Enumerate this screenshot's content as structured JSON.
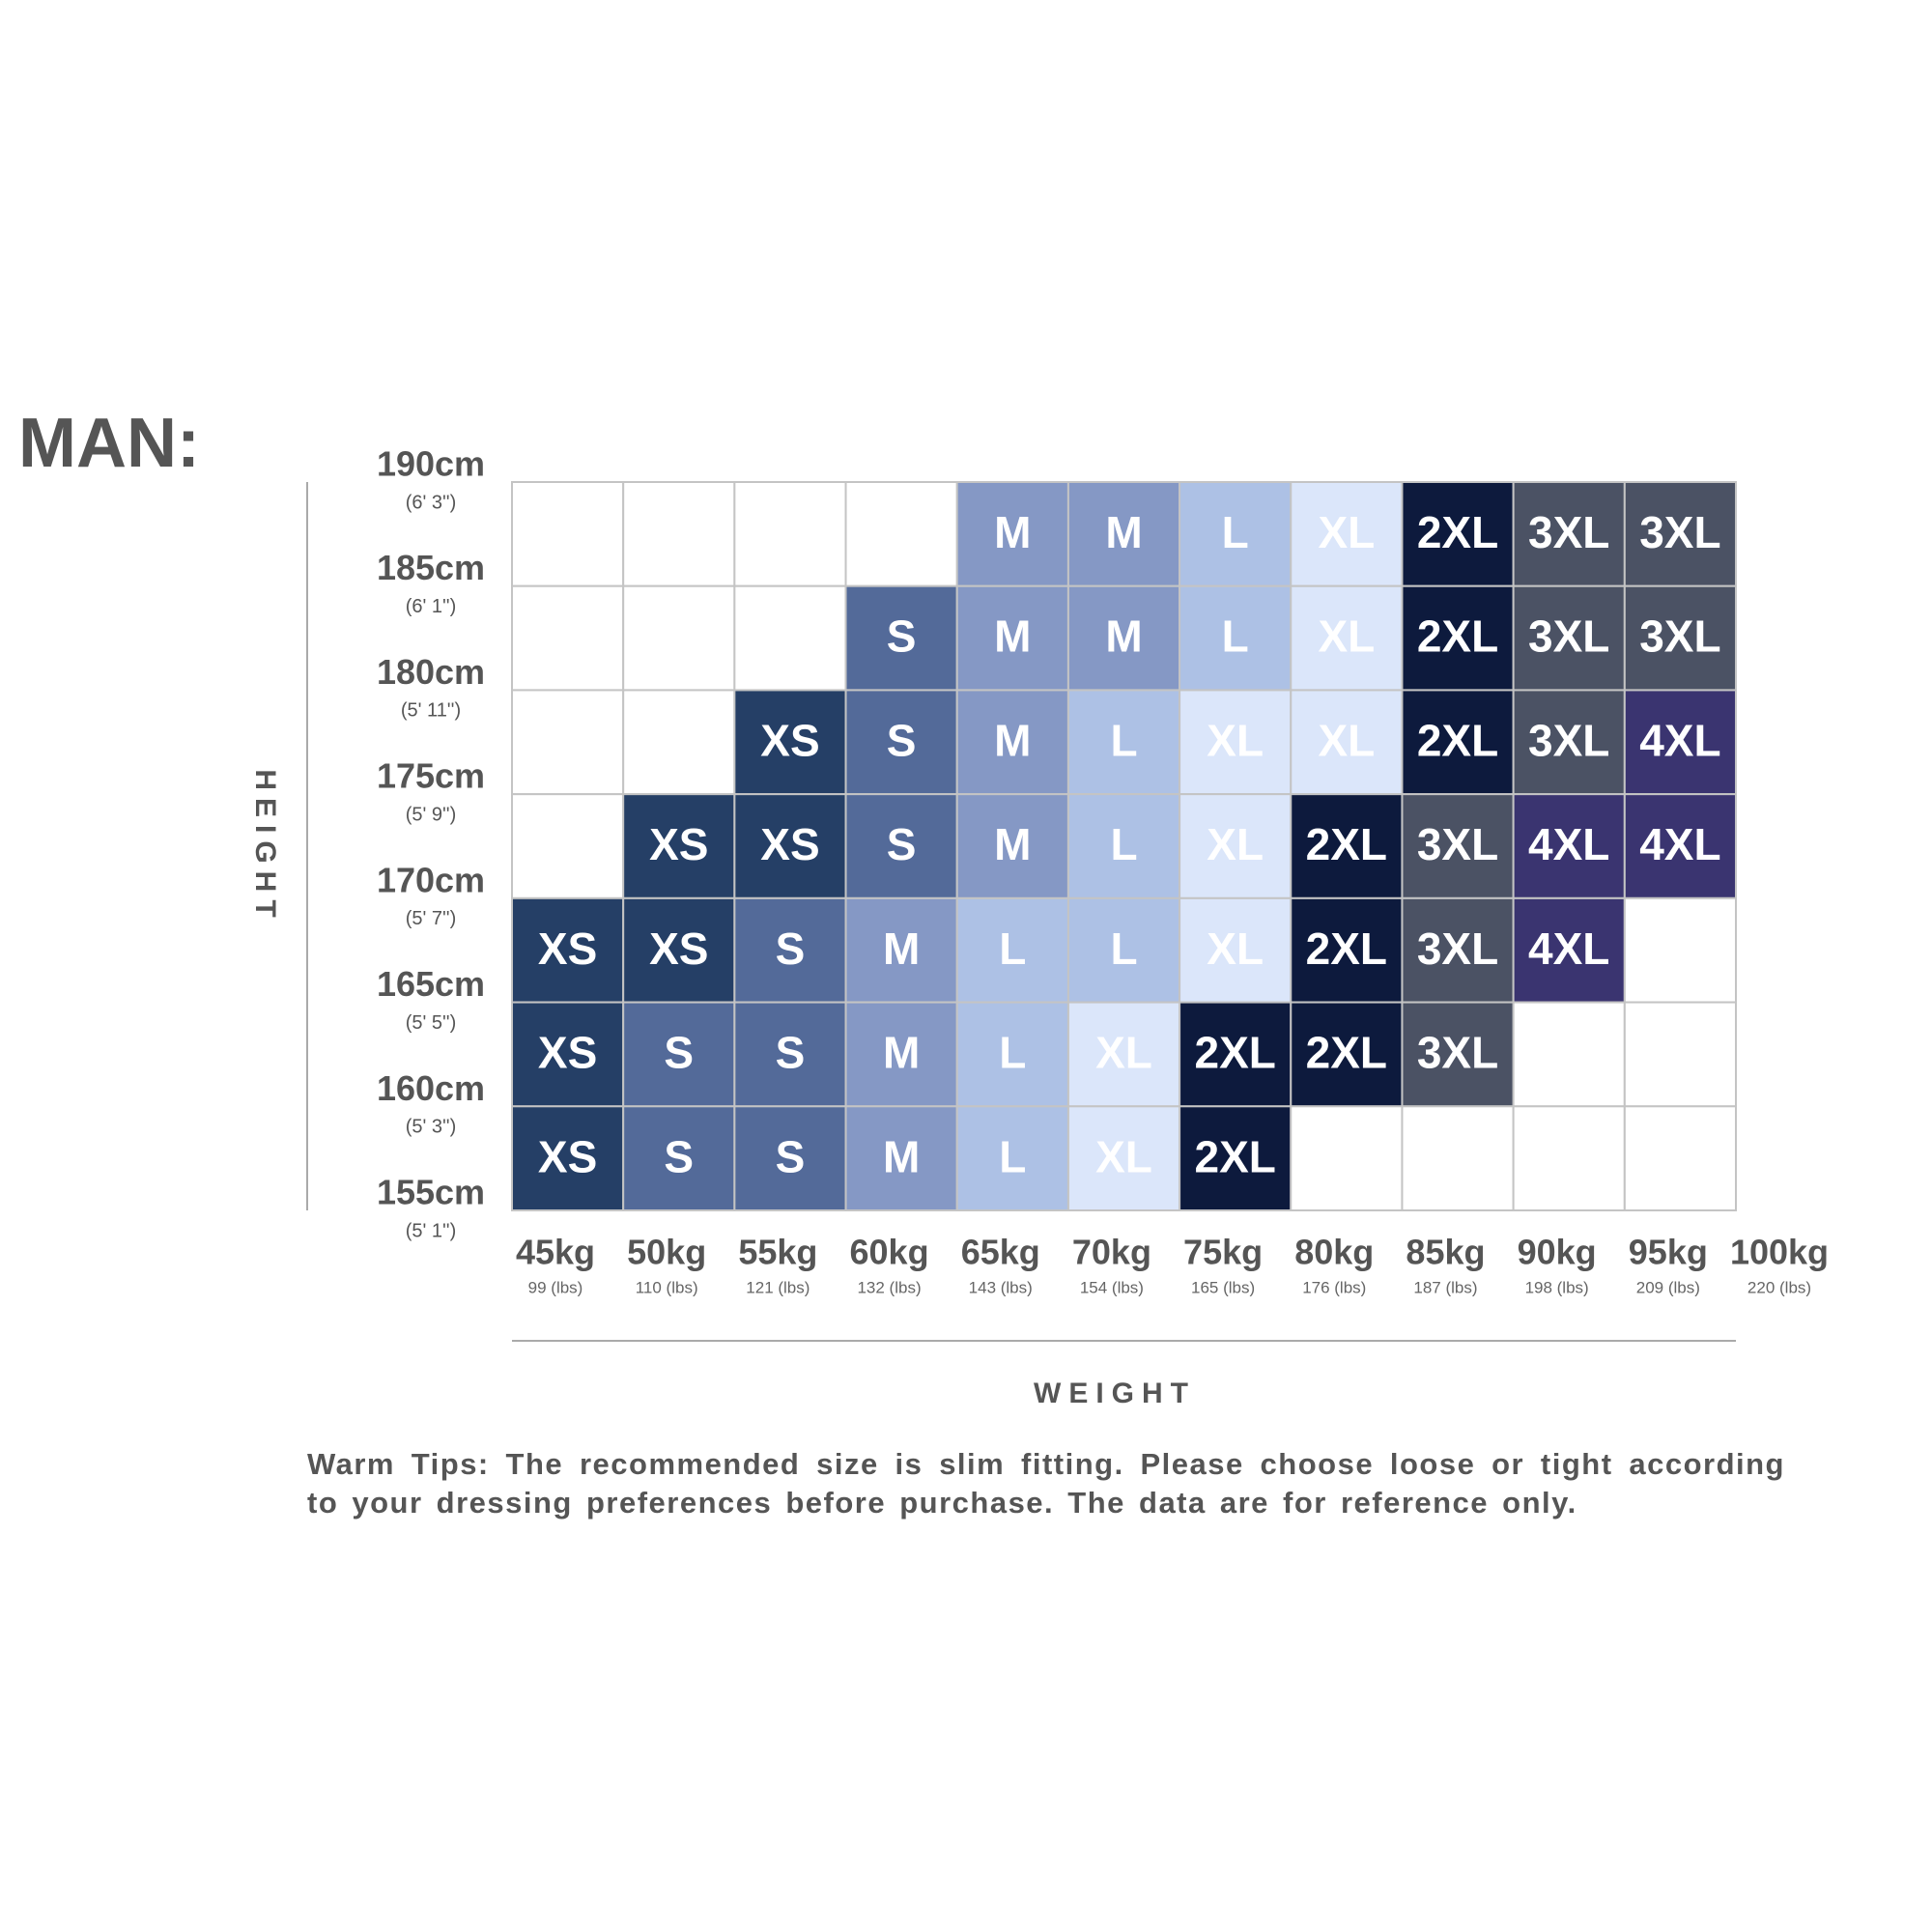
{
  "title": "MAN:",
  "y_axis_label": "HEIGHT",
  "x_axis_label": "WEIGHT",
  "heights": [
    {
      "cm": "190cm",
      "ft": "(6' 3'')"
    },
    {
      "cm": "185cm",
      "ft": "(6' 1'')"
    },
    {
      "cm": "180cm",
      "ft": "(5' 11'')"
    },
    {
      "cm": "175cm",
      "ft": "(5' 9'')"
    },
    {
      "cm": "170cm",
      "ft": "(5' 7'')"
    },
    {
      "cm": "165cm",
      "ft": "(5' 5'')"
    },
    {
      "cm": "160cm",
      "ft": "(5' 3'')"
    },
    {
      "cm": "155cm",
      "ft": "(5' 1'')"
    }
  ],
  "weights": [
    {
      "kg": "45kg",
      "lbs": "99 (lbs)"
    },
    {
      "kg": "50kg",
      "lbs": "110 (lbs)"
    },
    {
      "kg": "55kg",
      "lbs": "121 (lbs)"
    },
    {
      "kg": "60kg",
      "lbs": "132 (lbs)"
    },
    {
      "kg": "65kg",
      "lbs": "143 (lbs)"
    },
    {
      "kg": "70kg",
      "lbs": "154 (lbs)"
    },
    {
      "kg": "75kg",
      "lbs": "165 (lbs)"
    },
    {
      "kg": "80kg",
      "lbs": "176 (lbs)"
    },
    {
      "kg": "85kg",
      "lbs": "187 (lbs)"
    },
    {
      "kg": "90kg",
      "lbs": "198 (lbs)"
    },
    {
      "kg": "95kg",
      "lbs": "209 (lbs)"
    },
    {
      "kg": "100kg",
      "lbs": "220 (lbs)"
    }
  ],
  "grid": [
    [
      null,
      null,
      null,
      null,
      "M",
      "M",
      "L",
      "XL",
      "2XL",
      "3XL",
      "3XL"
    ],
    [
      null,
      null,
      null,
      "S",
      "M",
      "M",
      "L",
      "XL",
      "2XL",
      "3XL",
      "3XL"
    ],
    [
      null,
      null,
      "XS",
      "S",
      "M",
      "L",
      "XL",
      "XL",
      "2XL",
      "3XL",
      "4XL"
    ],
    [
      null,
      "XS",
      "XS",
      "S",
      "M",
      "L",
      "XL",
      "2XL",
      "3XL",
      "4XL",
      "4XL"
    ],
    [
      "XS",
      "XS",
      "S",
      "M",
      "L",
      "L",
      "XL",
      "2XL",
      "3XL",
      "4XL",
      null
    ],
    [
      "XS",
      "S",
      "S",
      "M",
      "L",
      "XL",
      "2XL",
      "2XL",
      "3XL",
      null,
      null
    ],
    [
      "XS",
      "S",
      "S",
      "M",
      "L",
      "XL",
      "2XL",
      null,
      null,
      null,
      null
    ]
  ],
  "colors": {
    "XS": "#253f66",
    "S": "#536a99",
    "M": "#8598c5",
    "L": "#adc1e5",
    "XL": "#dbe6fa",
    "2XL": "#0d1a3d",
    "3XL": "#4b5264",
    "4XL": "#3a3470"
  },
  "note": "Warm Tips: The recommended size is slim fitting. Please choose loose or tight according to your dressing preferences before purchase. The data are for reference only."
}
